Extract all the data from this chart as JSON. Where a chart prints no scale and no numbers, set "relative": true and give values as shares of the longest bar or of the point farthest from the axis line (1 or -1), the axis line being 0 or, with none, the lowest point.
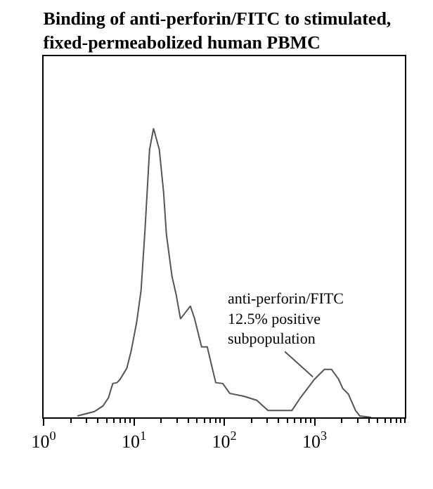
{
  "chart_data": {
    "type": "line",
    "title": "Binding of anti-perforin/FITC to stimulated,\nfixed-permeabolized human PBMC",
    "relative": true,
    "log": "x",
    "xlim": [
      1,
      10000
    ],
    "xticks": [
      {
        "value": 1,
        "label": "10$^{0}$"
      },
      {
        "value": 10,
        "label": "10$^{1}$"
      },
      {
        "value": 100,
        "label": "10$^{2}$"
      },
      {
        "value": 1000,
        "label": "10$^{3}$"
      }
    ],
    "x": [
      2.37,
      3.65,
      4.53,
      5.23,
      5.83,
      6.49,
      6.98,
      8.35,
      9.31,
      10.7,
      12.0,
      13.3,
      14.9,
      16.5,
      19.1,
      21.3,
      22.9,
      26.4,
      29.4,
      32.8,
      37.8,
      42.2,
      47.0,
      56.2,
      64.9,
      72.3,
      80.6,
      96.5,
      115,
      165,
      229,
      305,
      562,
      698,
      1000,
      1285,
      1540,
      1846,
      2054,
      2371,
      2840,
      3162,
      4217
    ],
    "series": [
      {
        "color": "#555555",
        "values": [
          0.005,
          0.02,
          0.039,
          0.068,
          0.117,
          0.12,
          0.13,
          0.17,
          0.229,
          0.327,
          0.439,
          0.654,
          0.927,
          1.0,
          0.927,
          0.78,
          0.634,
          0.488,
          0.424,
          0.341,
          0.366,
          0.385,
          0.341,
          0.244,
          0.244,
          0.181,
          0.12,
          0.117,
          0.083,
          0.073,
          0.059,
          0.024,
          0.024,
          0.068,
          0.132,
          0.166,
          0.166,
          0.132,
          0.1,
          0.08,
          0.024,
          0.005,
          0
        ]
      }
    ],
    "annotations": [
      {
        "text": "anti-perforin/FITC\n12.5% positive\nsubpopulation",
        "x": 960,
        "y": 0.14
      }
    ],
    "grid": false,
    "marker": "none",
    "line_style": "solid"
  }
}
